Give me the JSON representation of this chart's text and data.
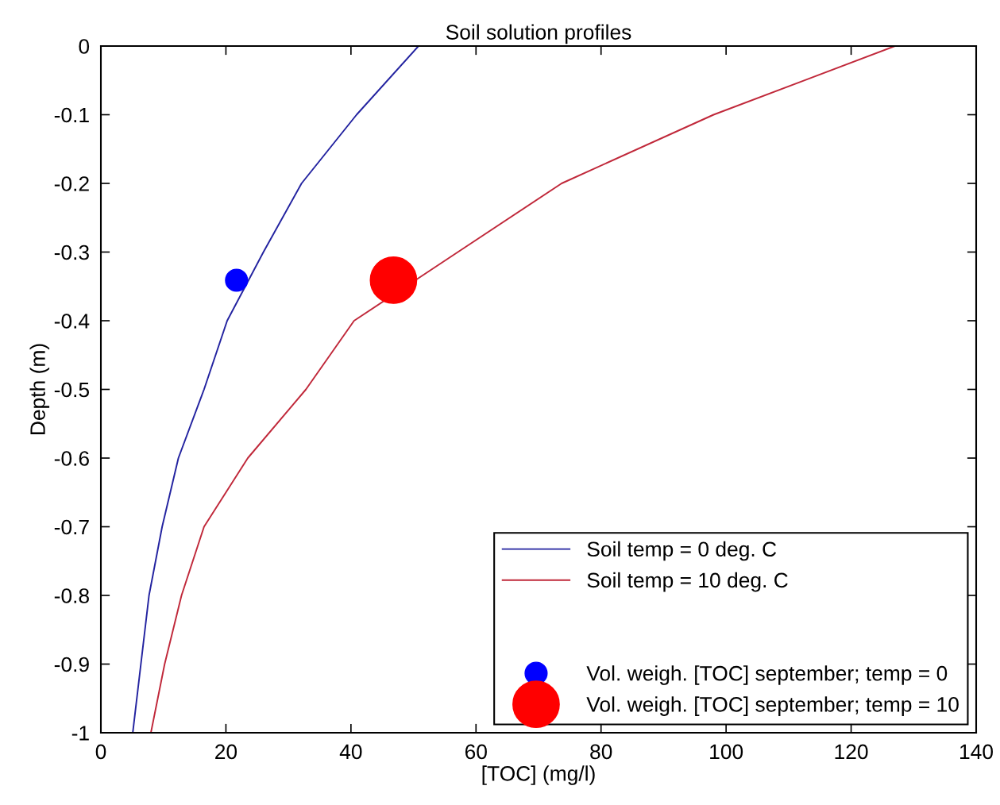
{
  "chart_data": {
    "type": "line",
    "title": "Soil solution profiles",
    "xlabel": "[TOC] (mg/l)",
    "ylabel": "Depth (m)",
    "xlim": [
      0,
      140
    ],
    "xticks": [
      0,
      20,
      40,
      60,
      80,
      100,
      120,
      140
    ],
    "ylim": [
      -1,
      0
    ],
    "yticks": [
      0,
      -0.1,
      -0.2,
      -0.3,
      -0.4,
      -0.5,
      -0.6,
      -0.7,
      -0.8,
      -0.9,
      -1
    ],
    "grid": false,
    "legend": "bottom right",
    "series": [
      {
        "name": "Soil temp = 0 deg. C",
        "color": "#2323a0",
        "marker": "none",
        "x": [
          50.8,
          40.9,
          32.1,
          26.0,
          20.2,
          16.5,
          12.4,
          9.8,
          7.7,
          6.4,
          5.1
        ],
        "values": [
          0,
          -0.1,
          -0.2,
          -0.3,
          -0.4,
          -0.5,
          -0.6,
          -0.7,
          -0.8,
          -0.9,
          -1
        ]
      },
      {
        "name": "Soil temp = 10 deg. C",
        "color": "#c0283a",
        "marker": "none",
        "x": [
          127,
          98.0,
          73.7,
          57.1,
          40.5,
          32.8,
          23.5,
          16.5,
          12.9,
          10.2,
          8.0
        ],
        "values": [
          0,
          -0.1,
          -0.2,
          -0.3,
          -0.4,
          -0.5,
          -0.6,
          -0.7,
          -0.8,
          -0.9,
          -1
        ]
      },
      {
        "name": "Vol. weigh. [TOC] september; temp = 0",
        "type": "scatter",
        "color": "#0000ff",
        "marker": "circle",
        "x": [
          21.7
        ],
        "values": [
          -0.341
        ]
      },
      {
        "name": "Vol. weigh. [TOC] september; temp = 10",
        "type": "scatter",
        "color": "#ff0000",
        "marker": "circle",
        "x": [
          46.8
        ],
        "values": [
          -0.341
        ]
      }
    ]
  }
}
